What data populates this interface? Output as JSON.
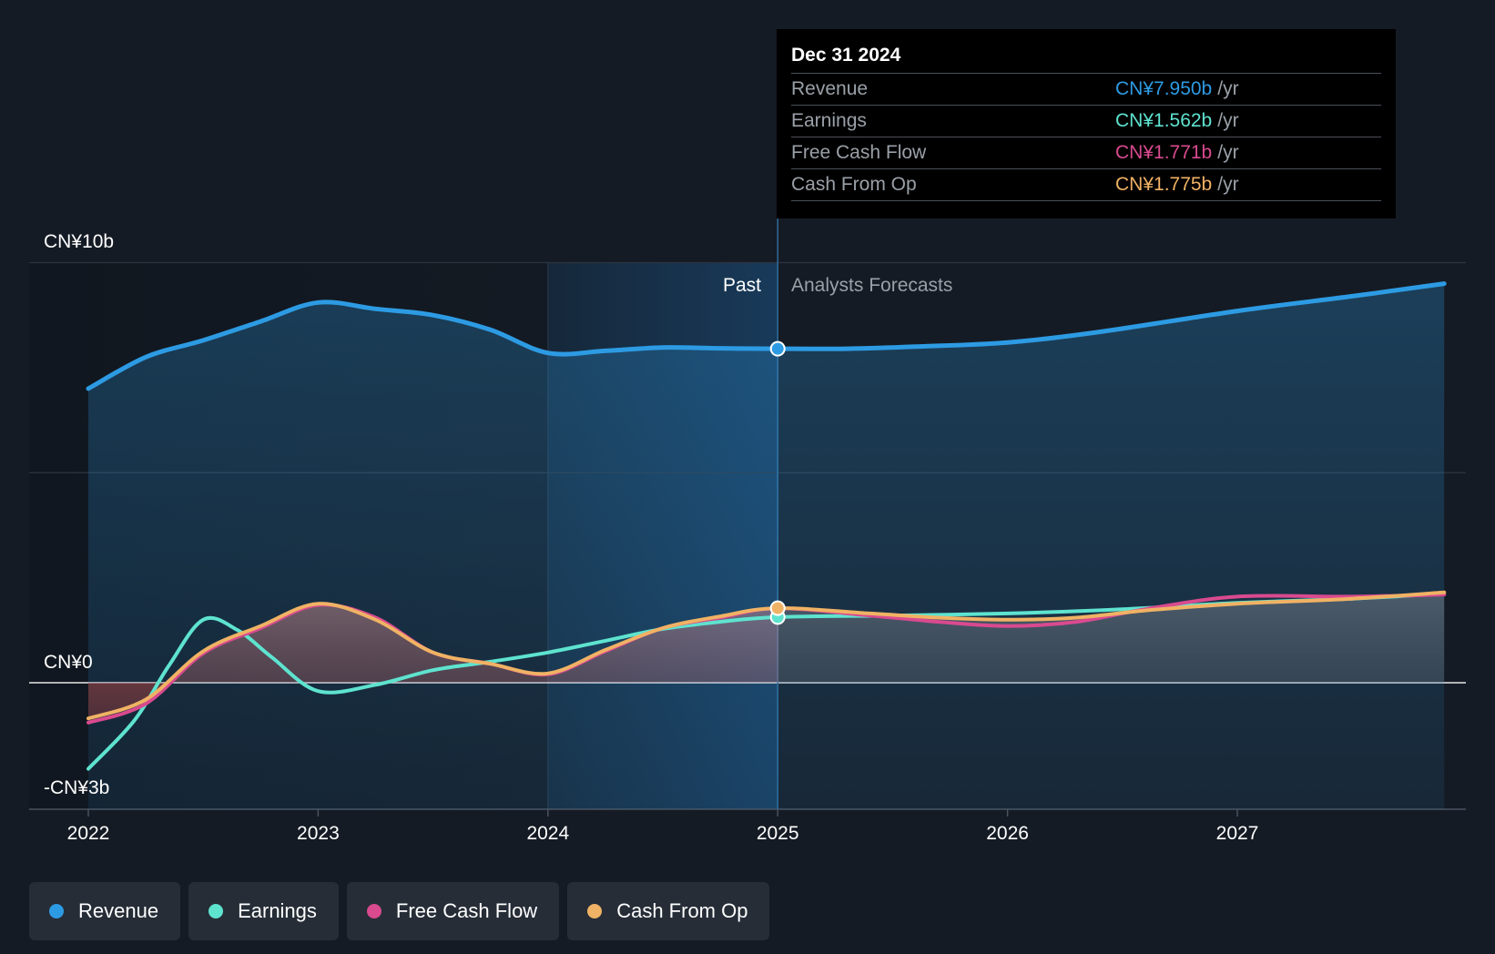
{
  "chart_data": {
    "type": "area",
    "y_tick_labels": [
      "CN¥10b",
      "CN¥0",
      "-CN¥3b"
    ],
    "y_ticks": [
      10,
      0,
      -3
    ],
    "ylim": [
      -3,
      10
    ],
    "x_tick_labels": [
      "2022",
      "2023",
      "2024",
      "2025",
      "2026",
      "2027"
    ],
    "x_ticks": [
      2022,
      2023,
      2024,
      2025,
      2026,
      2027
    ],
    "xlim": [
      2022,
      2027.9
    ],
    "past_label": "Past",
    "forecast_label": "Analysts Forecasts",
    "divider_x": 2025,
    "series": [
      {
        "name": "Revenue",
        "color": "#2d9be3",
        "fill": true,
        "points": [
          [
            2022,
            7.0
          ],
          [
            2022.25,
            7.75
          ],
          [
            2022.5,
            8.15
          ],
          [
            2022.75,
            8.6
          ],
          [
            2023,
            9.05
          ],
          [
            2023.25,
            8.9
          ],
          [
            2023.5,
            8.75
          ],
          [
            2023.75,
            8.4
          ],
          [
            2024,
            7.85
          ],
          [
            2024.25,
            7.9
          ],
          [
            2024.5,
            7.98
          ],
          [
            2024.75,
            7.96
          ],
          [
            2025,
            7.95
          ],
          [
            2025.3,
            7.95
          ],
          [
            2025.6,
            8.0
          ],
          [
            2026,
            8.1
          ],
          [
            2026.4,
            8.35
          ],
          [
            2027,
            8.85
          ],
          [
            2027.5,
            9.2
          ],
          [
            2027.9,
            9.5
          ]
        ]
      },
      {
        "name": "Earnings",
        "color": "#5ee3cf",
        "fill": false,
        "points": [
          [
            2022,
            -2.05
          ],
          [
            2022.2,
            -0.9
          ],
          [
            2022.35,
            0.4
          ],
          [
            2022.5,
            1.5
          ],
          [
            2022.65,
            1.25
          ],
          [
            2022.8,
            0.6
          ],
          [
            2023,
            -0.2
          ],
          [
            2023.25,
            -0.05
          ],
          [
            2023.5,
            0.3
          ],
          [
            2023.75,
            0.5
          ],
          [
            2024,
            0.72
          ],
          [
            2024.25,
            1.0
          ],
          [
            2024.5,
            1.28
          ],
          [
            2024.75,
            1.45
          ],
          [
            2025,
            1.562
          ],
          [
            2025.5,
            1.6
          ],
          [
            2026,
            1.65
          ],
          [
            2026.5,
            1.75
          ],
          [
            2027,
            1.9
          ],
          [
            2027.5,
            2.0
          ],
          [
            2027.9,
            2.12
          ]
        ]
      },
      {
        "name": "Free Cash Flow",
        "color": "#d94a8f",
        "fill": false,
        "points": [
          [
            2022,
            -0.95
          ],
          [
            2022.25,
            -0.5
          ],
          [
            2022.5,
            0.7
          ],
          [
            2022.75,
            1.3
          ],
          [
            2023,
            1.85
          ],
          [
            2023.25,
            1.55
          ],
          [
            2023.5,
            0.72
          ],
          [
            2023.75,
            0.45
          ],
          [
            2024,
            0.2
          ],
          [
            2024.25,
            0.75
          ],
          [
            2024.5,
            1.3
          ],
          [
            2024.75,
            1.55
          ],
          [
            2025,
            1.771
          ],
          [
            2025.4,
            1.6
          ],
          [
            2025.7,
            1.45
          ],
          [
            2026,
            1.35
          ],
          [
            2026.3,
            1.45
          ],
          [
            2026.6,
            1.75
          ],
          [
            2027,
            2.05
          ],
          [
            2027.5,
            2.05
          ],
          [
            2027.9,
            2.1
          ]
        ]
      },
      {
        "name": "Cash From Op",
        "color": "#f0b264",
        "fill": true,
        "points": [
          [
            2022,
            -0.85
          ],
          [
            2022.25,
            -0.4
          ],
          [
            2022.5,
            0.75
          ],
          [
            2022.75,
            1.35
          ],
          [
            2023,
            1.88
          ],
          [
            2023.25,
            1.5
          ],
          [
            2023.5,
            0.72
          ],
          [
            2023.75,
            0.45
          ],
          [
            2024,
            0.22
          ],
          [
            2024.25,
            0.78
          ],
          [
            2024.5,
            1.3
          ],
          [
            2024.75,
            1.58
          ],
          [
            2025,
            1.775
          ],
          [
            2025.4,
            1.65
          ],
          [
            2025.7,
            1.55
          ],
          [
            2026,
            1.5
          ],
          [
            2026.3,
            1.55
          ],
          [
            2026.6,
            1.72
          ],
          [
            2027,
            1.88
          ],
          [
            2027.5,
            2.0
          ],
          [
            2027.9,
            2.15
          ]
        ]
      }
    ]
  },
  "tooltip": {
    "date": "Dec 31 2024",
    "unit": "/yr",
    "rows": [
      {
        "label": "Revenue",
        "value": "CN¥7.950b",
        "color": "#2d9be3"
      },
      {
        "label": "Earnings",
        "value": "CN¥1.562b",
        "color": "#5ee3cf"
      },
      {
        "label": "Free Cash Flow",
        "value": "CN¥1.771b",
        "color": "#d94a8f"
      },
      {
        "label": "Cash From Op",
        "value": "CN¥1.775b",
        "color": "#f0b264"
      }
    ]
  },
  "legend": [
    {
      "label": "Revenue",
      "color": "#2d9be3"
    },
    {
      "label": "Earnings",
      "color": "#5ee3cf"
    },
    {
      "label": "Free Cash Flow",
      "color": "#d94a8f"
    },
    {
      "label": "Cash From Op",
      "color": "#f0b264"
    }
  ]
}
